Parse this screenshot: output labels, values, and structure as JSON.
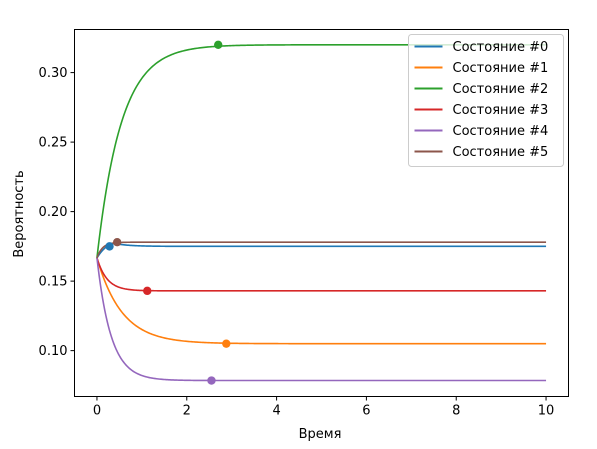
{
  "chart_data": {
    "type": "line",
    "xlabel": "Время",
    "ylabel": "Вероятность",
    "xlim": [
      -0.5,
      10.5
    ],
    "ylim": [
      0.067,
      0.331
    ],
    "xticks": [
      0,
      2,
      4,
      6,
      8,
      10
    ],
    "yticks": [
      0.1,
      0.15,
      0.2,
      0.25,
      0.3
    ],
    "xtick_labels": [
      "0",
      "2",
      "4",
      "6",
      "8",
      "10"
    ],
    "ytick_labels": [
      "0.10",
      "0.15",
      "0.20",
      "0.25",
      "0.30"
    ],
    "grid": false,
    "legend_position": "top-right",
    "initial_value": 0.1667,
    "series": [
      {
        "name": "Состояние #0",
        "color": "#1f77b4",
        "peak": {
          "t": 0.4,
          "p": 0.177
        },
        "steady": 0.175,
        "rate": 3.0,
        "marker": {
          "x": 0.28,
          "y": 0.175
        }
      },
      {
        "name": "Состояние #1",
        "color": "#ff7f0e",
        "steady": 0.105,
        "rate": 1.8,
        "marker": {
          "x": 2.88,
          "y": 0.105
        }
      },
      {
        "name": "Состояние #2",
        "color": "#2ca02c",
        "steady": 0.32,
        "rate": 1.85,
        "marker": {
          "x": 2.7,
          "y": 0.32
        }
      },
      {
        "name": "Состояние #3",
        "color": "#d62728",
        "steady": 0.143,
        "rate": 4.5,
        "marker": {
          "x": 1.12,
          "y": 0.143
        }
      },
      {
        "name": "Состояние #4",
        "color": "#9467bd",
        "steady": 0.0785,
        "rate": 3.2,
        "marker": {
          "x": 2.55,
          "y": 0.0785
        }
      },
      {
        "name": "Состояние #5",
        "color": "#8c564b",
        "steady": 0.178,
        "rate": 8.0,
        "marker": {
          "x": 0.45,
          "y": 0.178
        }
      }
    ]
  }
}
